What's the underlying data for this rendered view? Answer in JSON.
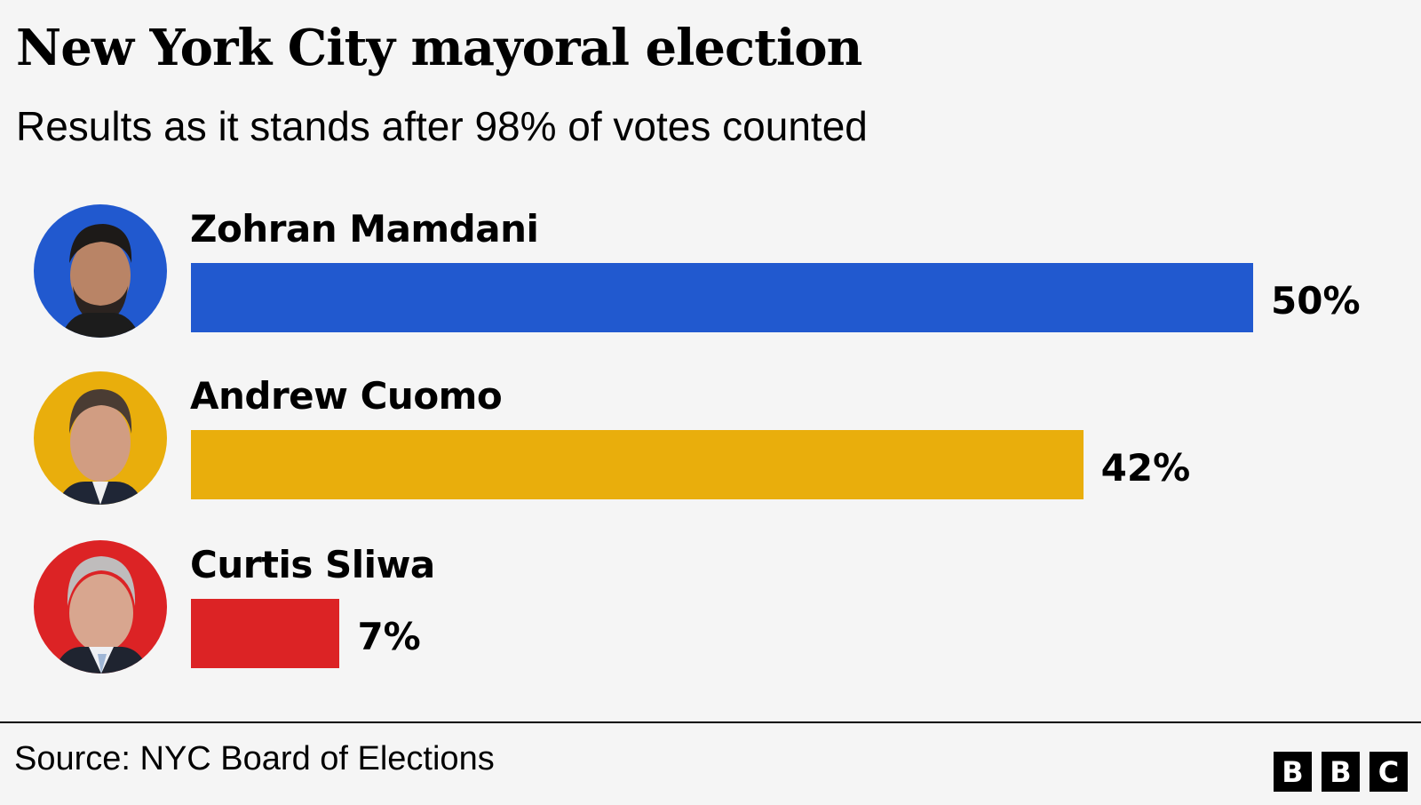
{
  "header": {
    "title": "New York City mayoral election",
    "subtitle": "Results as it stands after 98% of votes counted"
  },
  "candidates": [
    {
      "name": "Zohran Mamdani",
      "value": 50,
      "label": "50%",
      "color": "#2159cf",
      "photo": "candidate-photo"
    },
    {
      "name": "Andrew Cuomo",
      "value": 42,
      "label": "42%",
      "color": "#e9ae0c",
      "photo": "candidate-photo"
    },
    {
      "name": "Curtis Sliwa",
      "value": 7,
      "label": "7%",
      "color": "#dc2325",
      "photo": "candidate-photo"
    }
  ],
  "footer": {
    "source": "Source: NYC Board of Elections",
    "logo": [
      "B",
      "B",
      "C"
    ]
  },
  "chart_data": {
    "type": "bar",
    "orientation": "horizontal",
    "title": "New York City mayoral election",
    "subtitle": "Results as it stands after 98% of votes counted",
    "categories": [
      "Zohran Mamdani",
      "Andrew Cuomo",
      "Curtis Sliwa"
    ],
    "values": [
      50,
      42,
      7
    ],
    "value_labels": [
      "50%",
      "42%",
      "7%"
    ],
    "colors": [
      "#2159cf",
      "#e9ae0c",
      "#dc2325"
    ],
    "xlabel": "",
    "ylabel": "",
    "unit": "%",
    "grid": false,
    "legend": "none",
    "source": "Source: NYC Board of Elections"
  }
}
